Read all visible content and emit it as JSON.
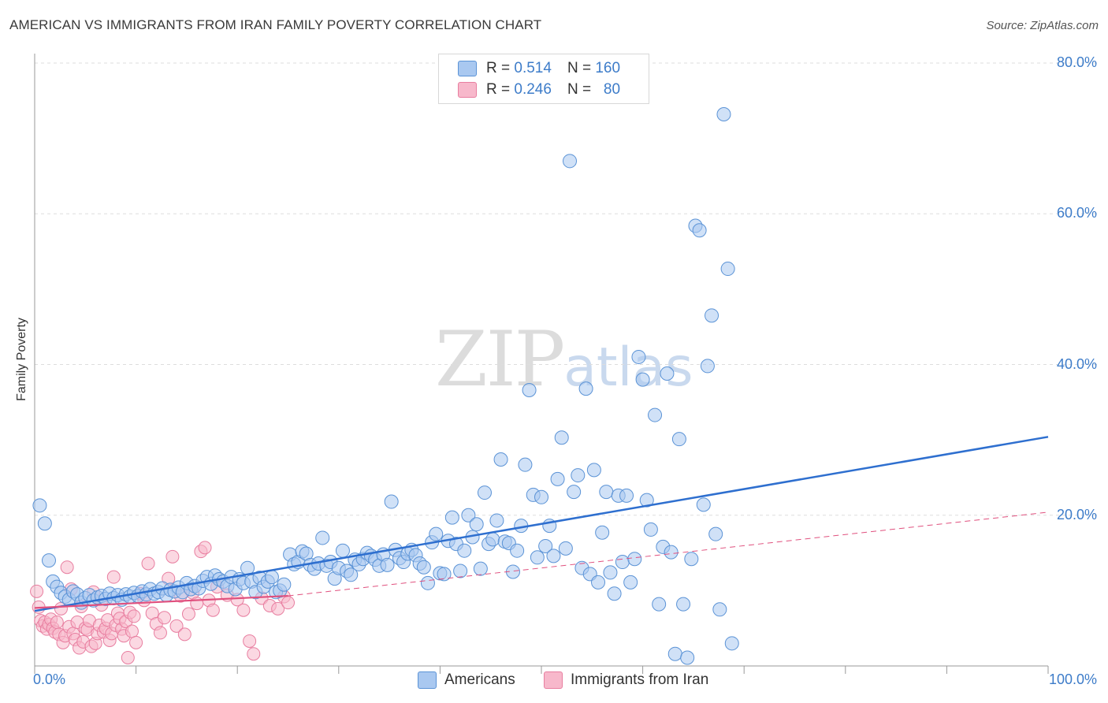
{
  "header": {
    "title": "AMERICAN VS IMMIGRANTS FROM IRAN FAMILY POVERTY CORRELATION CHART",
    "source": "Source: ZipAtlas.com"
  },
  "watermark": {
    "zip": "ZIP",
    "atlas": "atlas"
  },
  "legend": {
    "rows": [
      {
        "r_label": "R = ",
        "r_value": "0.514",
        "n_label": "N = ",
        "n_value": "160",
        "color": "#a9c8f0"
      },
      {
        "r_label": "R = ",
        "r_value": "0.246",
        "n_label": "N = ",
        "n_value": "80",
        "color": "#f7b8cb"
      }
    ]
  },
  "colors": {
    "americans_fill": "#a9c8f0",
    "americans_stroke": "#5b93d6",
    "americans_line": "#2e6fcf",
    "iran_fill": "#f7b8cb",
    "iran_stroke": "#e87ea0",
    "iran_line": "#e0507e",
    "tick_text": "#3d7cc9",
    "grid": "#dddddd"
  },
  "chart_data": {
    "type": "scatter",
    "title": "AMERICAN VS IMMIGRANTS FROM IRAN FAMILY POVERTY CORRELATION CHART",
    "xlabel": "",
    "ylabel": "Family Poverty",
    "xlim": [
      0,
      100
    ],
    "ylim": [
      0,
      80
    ],
    "x_tick_labels": [
      "0.0%",
      "100.0%"
    ],
    "y_ticks": [
      20,
      40,
      60,
      80
    ],
    "y_tick_labels": [
      "20.0%",
      "40.0%",
      "60.0%",
      "80.0%"
    ],
    "grid": true,
    "legend_position": "top-center",
    "series": [
      {
        "name": "Americans",
        "r": 0.514,
        "n": 160,
        "trend": {
          "x": [
            0,
            100
          ],
          "y": [
            7.3,
            30.4
          ]
        },
        "points": [
          [
            0.5,
            21.3
          ],
          [
            1.0,
            18.9
          ],
          [
            1.4,
            14.0
          ],
          [
            1.8,
            11.2
          ],
          [
            2.2,
            10.5
          ],
          [
            2.6,
            9.7
          ],
          [
            3.0,
            9.2
          ],
          [
            3.4,
            8.8
          ],
          [
            3.8,
            9.9
          ],
          [
            4.2,
            9.5
          ],
          [
            4.6,
            8.4
          ],
          [
            5.0,
            9.0
          ],
          [
            5.4,
            9.4
          ],
          [
            5.8,
            8.7
          ],
          [
            6.2,
            9.1
          ],
          [
            6.6,
            9.3
          ],
          [
            7.0,
            8.9
          ],
          [
            7.4,
            9.6
          ],
          [
            7.8,
            9.0
          ],
          [
            8.2,
            9.4
          ],
          [
            8.6,
            8.8
          ],
          [
            9.0,
            9.5
          ],
          [
            9.4,
            9.2
          ],
          [
            9.8,
            9.7
          ],
          [
            10.2,
            9.3
          ],
          [
            10.6,
            9.9
          ],
          [
            11.0,
            9.5
          ],
          [
            11.4,
            10.2
          ],
          [
            11.8,
            9.6
          ],
          [
            12.2,
            9.8
          ],
          [
            12.6,
            10.3
          ],
          [
            13.0,
            9.4
          ],
          [
            13.4,
            10.1
          ],
          [
            13.8,
            9.9
          ],
          [
            14.2,
            10.4
          ],
          [
            14.6,
            9.8
          ],
          [
            15.0,
            11.0
          ],
          [
            15.4,
            10.2
          ],
          [
            15.8,
            10.6
          ],
          [
            16.2,
            10.3
          ],
          [
            16.6,
            11.3
          ],
          [
            17.0,
            11.8
          ],
          [
            17.4,
            10.9
          ],
          [
            17.8,
            12.0
          ],
          [
            18.2,
            11.5
          ],
          [
            18.6,
            11.2
          ],
          [
            19.0,
            10.6
          ],
          [
            19.4,
            11.8
          ],
          [
            19.8,
            10.2
          ],
          [
            20.2,
            11.5
          ],
          [
            20.6,
            11.0
          ],
          [
            21.0,
            13.0
          ],
          [
            21.4,
            11.2
          ],
          [
            21.8,
            9.8
          ],
          [
            22.2,
            11.7
          ],
          [
            22.6,
            10.5
          ],
          [
            23.0,
            11.2
          ],
          [
            23.4,
            11.8
          ],
          [
            23.8,
            9.8
          ],
          [
            24.2,
            10.0
          ],
          [
            24.6,
            10.8
          ],
          [
            25.2,
            14.8
          ],
          [
            25.6,
            13.5
          ],
          [
            26.0,
            13.8
          ],
          [
            26.4,
            15.2
          ],
          [
            26.8,
            14.9
          ],
          [
            27.2,
            13.4
          ],
          [
            27.6,
            12.9
          ],
          [
            28.0,
            13.6
          ],
          [
            28.4,
            17.0
          ],
          [
            28.8,
            13.3
          ],
          [
            29.2,
            13.8
          ],
          [
            29.6,
            11.6
          ],
          [
            30.0,
            13.0
          ],
          [
            30.4,
            15.3
          ],
          [
            30.8,
            12.6
          ],
          [
            31.2,
            12.1
          ],
          [
            31.6,
            14.1
          ],
          [
            32.0,
            13.5
          ],
          [
            32.4,
            14.2
          ],
          [
            32.8,
            15.0
          ],
          [
            33.2,
            14.6
          ],
          [
            33.6,
            14.1
          ],
          [
            34.0,
            13.3
          ],
          [
            34.4,
            14.8
          ],
          [
            34.8,
            13.4
          ],
          [
            35.2,
            21.8
          ],
          [
            35.6,
            15.4
          ],
          [
            36.0,
            14.3
          ],
          [
            36.4,
            13.8
          ],
          [
            36.8,
            14.9
          ],
          [
            37.2,
            15.4
          ],
          [
            37.6,
            14.7
          ],
          [
            38.0,
            13.6
          ],
          [
            38.4,
            13.1
          ],
          [
            38.8,
            11.0
          ],
          [
            39.2,
            16.4
          ],
          [
            39.6,
            17.5
          ],
          [
            40.0,
            12.3
          ],
          [
            40.4,
            12.2
          ],
          [
            40.8,
            16.6
          ],
          [
            41.2,
            19.7
          ],
          [
            41.6,
            16.2
          ],
          [
            42.0,
            12.6
          ],
          [
            42.4,
            15.3
          ],
          [
            42.8,
            20.0
          ],
          [
            43.2,
            17.1
          ],
          [
            43.6,
            18.8
          ],
          [
            44.0,
            12.9
          ],
          [
            44.4,
            23.0
          ],
          [
            44.8,
            16.2
          ],
          [
            45.2,
            16.8
          ],
          [
            45.6,
            19.3
          ],
          [
            46.0,
            27.4
          ],
          [
            46.4,
            16.5
          ],
          [
            46.8,
            16.3
          ],
          [
            47.2,
            12.5
          ],
          [
            47.6,
            15.3
          ],
          [
            48.0,
            18.6
          ],
          [
            48.4,
            26.7
          ],
          [
            48.8,
            36.6
          ],
          [
            49.2,
            22.7
          ],
          [
            49.6,
            14.4
          ],
          [
            50.0,
            22.4
          ],
          [
            50.4,
            15.9
          ],
          [
            50.8,
            18.6
          ],
          [
            51.2,
            14.6
          ],
          [
            51.6,
            24.8
          ],
          [
            52.0,
            30.3
          ],
          [
            52.4,
            15.6
          ],
          [
            52.8,
            67.0
          ],
          [
            53.2,
            23.1
          ],
          [
            53.6,
            25.3
          ],
          [
            54.0,
            13.0
          ],
          [
            54.4,
            36.8
          ],
          [
            54.8,
            12.2
          ],
          [
            55.2,
            26.0
          ],
          [
            55.6,
            11.1
          ],
          [
            56.0,
            17.7
          ],
          [
            56.4,
            23.1
          ],
          [
            56.8,
            12.4
          ],
          [
            57.2,
            9.6
          ],
          [
            57.6,
            22.6
          ],
          [
            58.0,
            13.8
          ],
          [
            58.4,
            22.6
          ],
          [
            58.8,
            11.1
          ],
          [
            59.2,
            14.2
          ],
          [
            59.6,
            41.0
          ],
          [
            60.0,
            38.0
          ],
          [
            60.4,
            22.0
          ],
          [
            60.8,
            18.1
          ],
          [
            61.2,
            33.3
          ],
          [
            61.6,
            8.2
          ],
          [
            62.0,
            15.8
          ],
          [
            62.4,
            38.8
          ],
          [
            62.8,
            15.1
          ],
          [
            63.2,
            1.6
          ],
          [
            63.6,
            30.1
          ],
          [
            64.0,
            8.2
          ],
          [
            64.4,
            1.1
          ],
          [
            64.8,
            14.2
          ],
          [
            65.2,
            58.4
          ],
          [
            65.6,
            57.8
          ],
          [
            66.0,
            21.4
          ],
          [
            66.4,
            39.8
          ],
          [
            66.8,
            46.5
          ],
          [
            67.2,
            17.5
          ],
          [
            67.6,
            7.5
          ],
          [
            68.0,
            73.2
          ],
          [
            68.4,
            52.7
          ],
          [
            68.8,
            3.0
          ]
        ]
      },
      {
        "name": "Immigrants from Iran",
        "r": 0.246,
        "n": 80,
        "trend_solid": {
          "x": [
            0,
            25
          ],
          "y": [
            7.7,
            9.3
          ]
        },
        "trend_dashed": {
          "x": [
            25,
            100
          ],
          "y": [
            9.3,
            20.4
          ]
        },
        "points": [
          [
            0.2,
            9.9
          ],
          [
            0.4,
            7.8
          ],
          [
            0.6,
            6.0
          ],
          [
            0.8,
            5.3
          ],
          [
            1.0,
            5.8
          ],
          [
            1.2,
            4.9
          ],
          [
            1.4,
            5.5
          ],
          [
            1.6,
            6.2
          ],
          [
            1.8,
            5.0
          ],
          [
            2.0,
            4.5
          ],
          [
            2.2,
            5.8
          ],
          [
            2.4,
            4.2
          ],
          [
            2.6,
            7.6
          ],
          [
            2.8,
            3.1
          ],
          [
            3.0,
            4.0
          ],
          [
            3.2,
            13.1
          ],
          [
            3.4,
            5.2
          ],
          [
            3.6,
            10.2
          ],
          [
            3.8,
            4.3
          ],
          [
            4.0,
            3.5
          ],
          [
            4.2,
            5.8
          ],
          [
            4.4,
            2.4
          ],
          [
            4.6,
            7.9
          ],
          [
            4.8,
            3.2
          ],
          [
            5.0,
            5.0
          ],
          [
            5.2,
            4.8
          ],
          [
            5.4,
            6.0
          ],
          [
            5.6,
            2.6
          ],
          [
            5.8,
            9.8
          ],
          [
            6.0,
            3.0
          ],
          [
            6.2,
            4.3
          ],
          [
            6.4,
            5.4
          ],
          [
            6.6,
            8.1
          ],
          [
            6.8,
            4.5
          ],
          [
            7.0,
            5.0
          ],
          [
            7.2,
            6.1
          ],
          [
            7.4,
            3.4
          ],
          [
            7.6,
            4.3
          ],
          [
            7.8,
            11.8
          ],
          [
            8.0,
            5.4
          ],
          [
            8.2,
            7.0
          ],
          [
            8.4,
            6.3
          ],
          [
            8.6,
            4.9
          ],
          [
            8.8,
            4.0
          ],
          [
            9.0,
            5.9
          ],
          [
            9.2,
            1.1
          ],
          [
            9.4,
            7.1
          ],
          [
            9.6,
            4.6
          ],
          [
            9.8,
            6.6
          ],
          [
            10.0,
            3.1
          ],
          [
            10.4,
            9.6
          ],
          [
            10.8,
            8.7
          ],
          [
            11.2,
            13.6
          ],
          [
            11.6,
            7.0
          ],
          [
            12.0,
            5.6
          ],
          [
            12.4,
            4.4
          ],
          [
            12.8,
            6.4
          ],
          [
            13.2,
            11.6
          ],
          [
            13.6,
            14.5
          ],
          [
            14.0,
            5.3
          ],
          [
            14.4,
            9.3
          ],
          [
            14.8,
            4.2
          ],
          [
            15.2,
            6.9
          ],
          [
            15.6,
            9.7
          ],
          [
            16.0,
            8.3
          ],
          [
            16.4,
            15.2
          ],
          [
            16.8,
            15.7
          ],
          [
            17.2,
            8.7
          ],
          [
            17.6,
            7.4
          ],
          [
            18.0,
            10.5
          ],
          [
            19.0,
            9.4
          ],
          [
            20.0,
            8.8
          ],
          [
            20.6,
            7.4
          ],
          [
            21.2,
            3.3
          ],
          [
            21.6,
            1.6
          ],
          [
            22.4,
            9.0
          ],
          [
            23.2,
            8.0
          ],
          [
            24.0,
            7.6
          ],
          [
            24.6,
            9.2
          ],
          [
            25.0,
            8.4
          ]
        ]
      }
    ]
  }
}
